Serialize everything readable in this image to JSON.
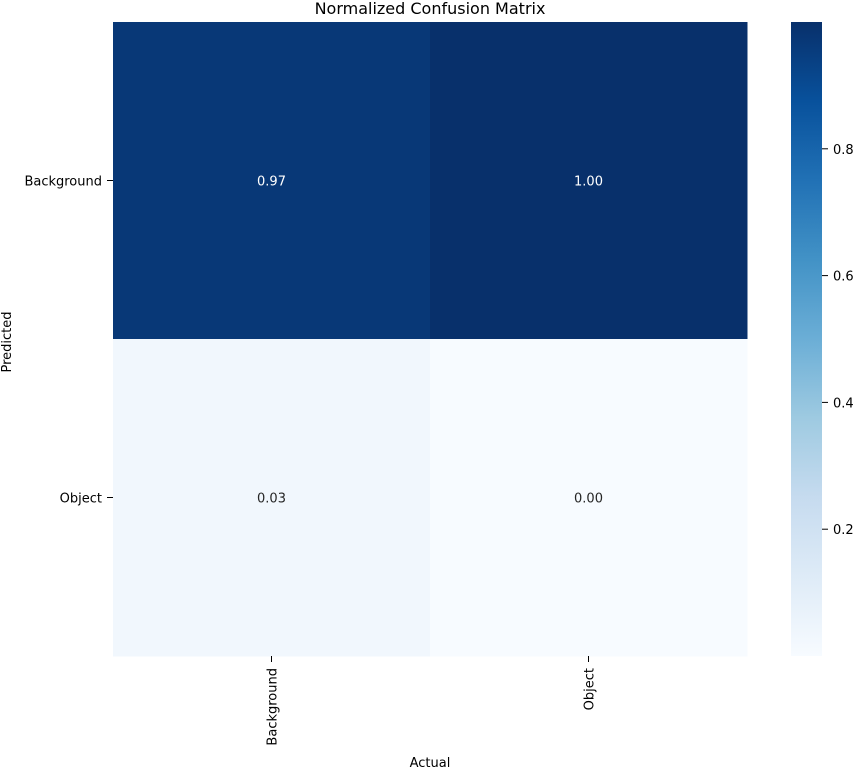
{
  "chart_data": {
    "type": "heatmap",
    "title": "Normalized Confusion Matrix",
    "xlabel": "Actual",
    "ylabel": "Predicted",
    "x_categories": [
      "Background",
      "Object"
    ],
    "y_categories": [
      "Background",
      "Object"
    ],
    "values": [
      [
        0.97,
        1.0
      ],
      [
        0.03,
        0.0
      ]
    ],
    "annotations": [
      [
        "0.97",
        "1.00"
      ],
      [
        "0.03",
        "0.00"
      ]
    ],
    "color_scale": {
      "name": "Blues",
      "range": [
        0,
        1
      ],
      "ticks": [
        0.2,
        0.4,
        0.6,
        0.8
      ],
      "tick_labels": [
        "0.2",
        "0.4",
        "0.6",
        "0.8"
      ],
      "low_color": "#f7fbff",
      "high_color": "#08306b"
    },
    "legend": "colorbar-right",
    "grid": false
  }
}
